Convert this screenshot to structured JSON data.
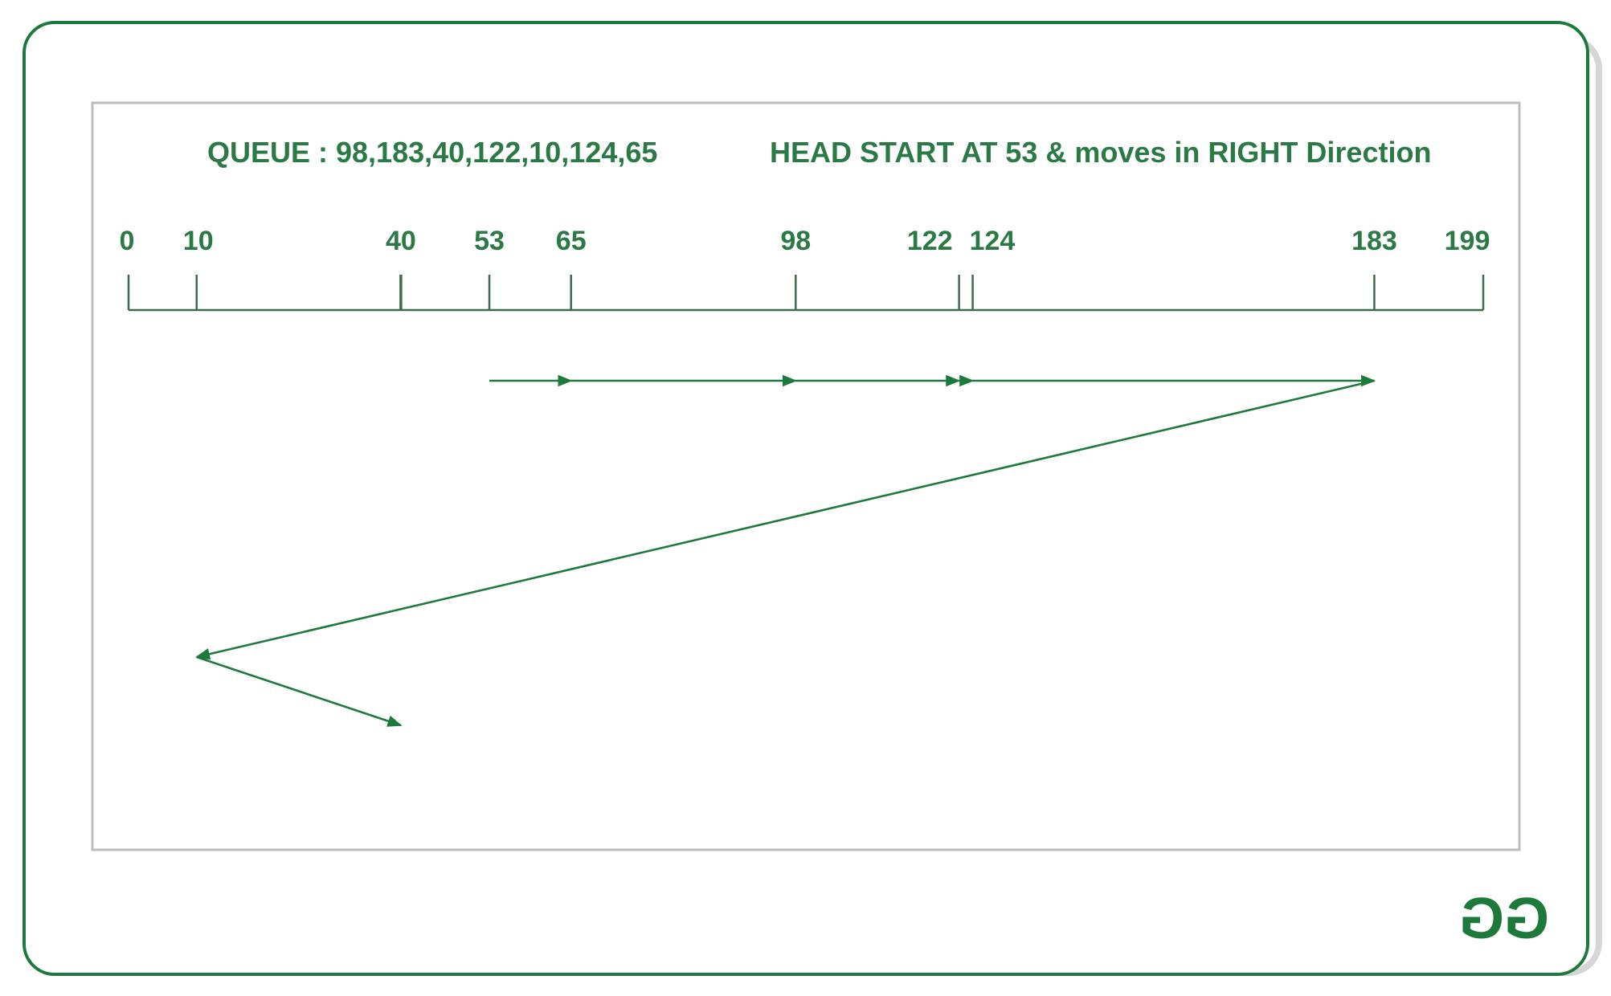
{
  "header": {
    "queue_text": "QUEUE : 98,183,40,122,10,124,65",
    "head_text": "HEAD START AT 53 & moves in RIGHT Direction"
  },
  "axis": {
    "min": 0,
    "max": 199,
    "ticks": [
      0,
      10,
      40,
      53,
      65,
      98,
      122,
      124,
      183,
      199
    ]
  },
  "scan_path": [
    53,
    65,
    98,
    122,
    124,
    183,
    10,
    40
  ],
  "logo": {
    "text": "GG",
    "name": "geeksforgeeks-logo"
  },
  "colors": {
    "accent": "#1e7a3c",
    "text": "#2b7a45",
    "axis_line": "#3d6b4b",
    "frame_border": "#bdbdbd",
    "card_border": "#1e7a3c"
  }
}
